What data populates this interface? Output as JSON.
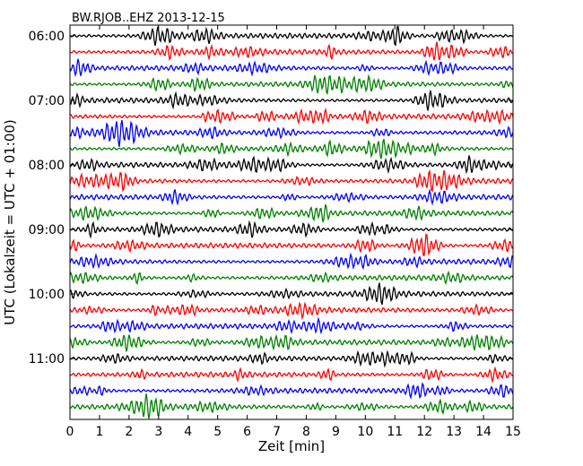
{
  "chart_data": {
    "type": "line",
    "title": "BW.RJOB..EHZ 2013-12-15",
    "xlabel": "Zeit  [min]",
    "ylabel": "UTC (Lokalzeit = UTC + 01:00)",
    "xlim": [
      0,
      15
    ],
    "x_ticks": [
      "0",
      "1",
      "2",
      "3",
      "4",
      "5",
      "6",
      "7",
      "8",
      "9",
      "10",
      "11",
      "12",
      "13",
      "14",
      "15"
    ],
    "y_ticks": [
      "06:00",
      "07:00",
      "08:00",
      "09:00",
      "10:00",
      "11:00"
    ],
    "tick_every_n_traces": 4,
    "trace_minutes": 15,
    "trace_colors": [
      "#000000",
      "#ff0000",
      "#0000ff",
      "#008000"
    ],
    "trace_count": 24,
    "grid": false,
    "legend": "none"
  }
}
